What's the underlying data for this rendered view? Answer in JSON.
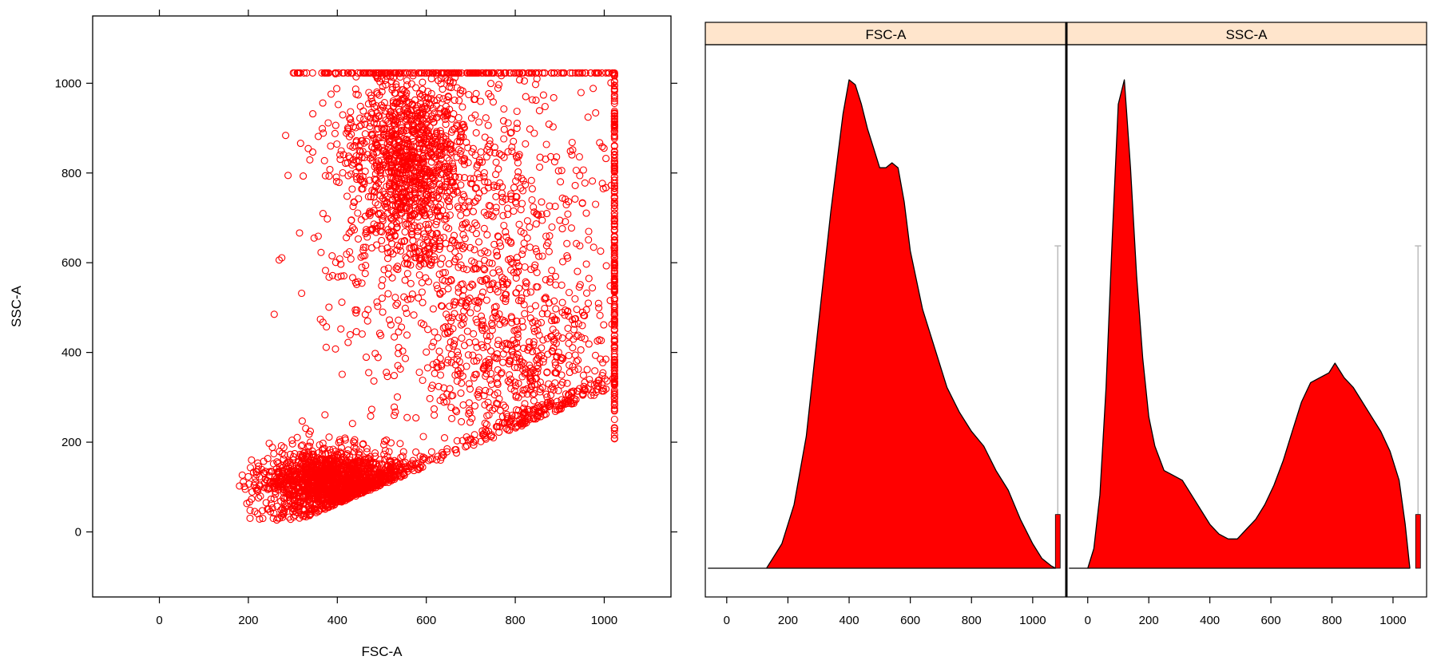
{
  "chart_data": [
    {
      "type": "scatter",
      "xlabel": "FSC-A",
      "ylabel": "SSC-A",
      "xlim": [
        -150,
        1150
      ],
      "ylim": [
        -145,
        1150
      ],
      "x_ticks": [
        0,
        200,
        400,
        600,
        800,
        1000
      ],
      "y_ticks": [
        0,
        200,
        400,
        600,
        800,
        1000
      ],
      "marker": "open-circle",
      "color": "#ff0000",
      "populations": [
        {
          "center": [
            390,
            110
          ],
          "spread": [
            80,
            38
          ],
          "count": 1700
        },
        {
          "center": [
            560,
            830
          ],
          "spread": [
            75,
            110
          ],
          "count": 1100
        },
        {
          "center": [
            820,
            330
          ],
          "spread": [
            110,
            110
          ],
          "count": 500
        },
        {
          "center": [
            700,
            640
          ],
          "spread": [
            170,
            230
          ],
          "count": 900
        }
      ],
      "saturation": {
        "x_max": 1023,
        "y_max": 1023
      }
    },
    {
      "type": "area",
      "panels": [
        {
          "strip_label": "FSC-A",
          "xlim": [
            -70,
            1110
          ],
          "x_ticks": [
            0,
            200,
            400,
            600,
            800,
            1000
          ],
          "x": [
            -60,
            130,
            150,
            180,
            220,
            260,
            300,
            340,
            380,
            400,
            420,
            440,
            460,
            480,
            500,
            520,
            540,
            560,
            580,
            600,
            640,
            680,
            720,
            760,
            800,
            840,
            880,
            920,
            960,
            1000,
            1030,
            1060,
            1075
          ],
          "density": [
            0,
            0,
            0.02,
            0.05,
            0.13,
            0.27,
            0.5,
            0.73,
            0.93,
            1.0,
            0.99,
            0.95,
            0.9,
            0.86,
            0.82,
            0.82,
            0.83,
            0.82,
            0.75,
            0.65,
            0.53,
            0.45,
            0.37,
            0.32,
            0.28,
            0.25,
            0.2,
            0.16,
            0.1,
            0.05,
            0.02,
            0.005,
            0
          ],
          "saturation_bar": {
            "x": 1082,
            "height": 0.11
          },
          "whisker": {
            "x": 1082,
            "height": 0.66
          }
        },
        {
          "strip_label": "SSC-A",
          "xlim": [
            -70,
            1110
          ],
          "x_ticks": [
            0,
            200,
            400,
            600,
            800,
            1000
          ],
          "x": [
            -60,
            0,
            20,
            40,
            60,
            80,
            100,
            120,
            140,
            160,
            180,
            200,
            220,
            250,
            280,
            310,
            340,
            370,
            400,
            430,
            460,
            490,
            520,
            550,
            580,
            610,
            640,
            670,
            700,
            730,
            760,
            790,
            810,
            840,
            870,
            900,
            930,
            960,
            990,
            1020,
            1040,
            1055
          ],
          "density": [
            0,
            0,
            0.04,
            0.15,
            0.37,
            0.67,
            0.95,
            1.0,
            0.82,
            0.6,
            0.43,
            0.31,
            0.25,
            0.2,
            0.19,
            0.18,
            0.15,
            0.12,
            0.09,
            0.07,
            0.06,
            0.06,
            0.08,
            0.1,
            0.13,
            0.17,
            0.22,
            0.28,
            0.34,
            0.38,
            0.39,
            0.4,
            0.42,
            0.39,
            0.37,
            0.34,
            0.31,
            0.28,
            0.24,
            0.18,
            0.09,
            0
          ],
          "saturation_bar": {
            "x": 1082,
            "height": 0.11
          },
          "whisker": {
            "x": 1082,
            "height": 0.66
          }
        }
      ],
      "fill_color": "#ff0000",
      "strip_color": "#ffe5cc"
    }
  ]
}
